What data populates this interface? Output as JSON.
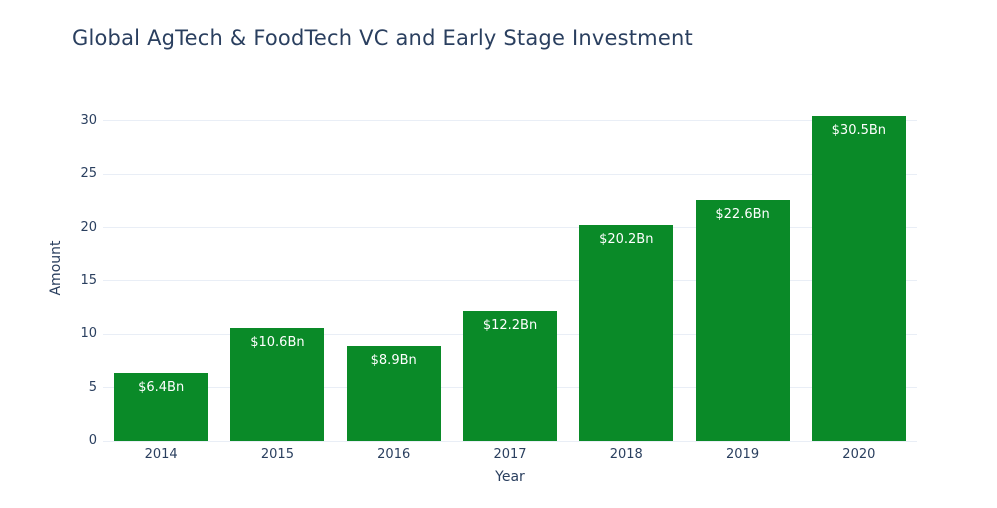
{
  "chart_data": {
    "type": "bar",
    "title": "Global AgTech & FoodTech VC and Early Stage Investment",
    "xlabel": "Year",
    "ylabel": "Amount",
    "categories": [
      "2014",
      "2015",
      "2016",
      "2017",
      "2018",
      "2019",
      "2020"
    ],
    "values": [
      6.4,
      10.6,
      8.9,
      12.2,
      20.2,
      22.6,
      30.5
    ],
    "bar_labels": [
      "$6.4Bn",
      "$10.6Bn",
      "$8.9Bn",
      "$12.2Bn",
      "$20.2Bn",
      "$22.6Bn",
      "$30.5Bn"
    ],
    "yticks": [
      0,
      5,
      10,
      15,
      20,
      25,
      30
    ],
    "ylim": [
      0,
      32.33
    ],
    "grid": true,
    "legend": false,
    "colors": {
      "bar": "#0a8a28",
      "bar_label_text": "#ffffff",
      "text": "#2a3f5f",
      "grid": "#e9eef6",
      "background": "#ffffff"
    }
  }
}
